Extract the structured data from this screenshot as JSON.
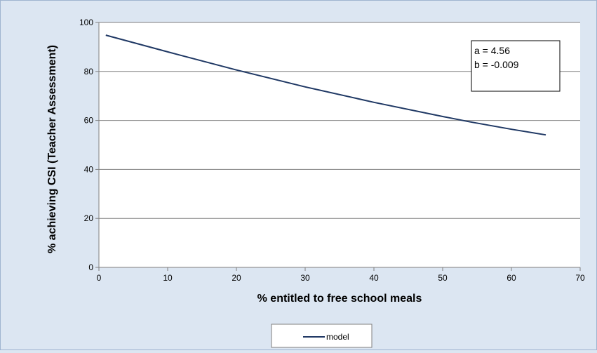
{
  "chart_data": {
    "type": "line",
    "title": "",
    "xlabel": "% entitled to free school meals",
    "ylabel": "% achieving CSI (Teacher Assessment)",
    "xlim": [
      0,
      70
    ],
    "ylim": [
      0,
      100
    ],
    "x_ticks": [
      "0",
      "10",
      "20",
      "30",
      "40",
      "50",
      "60",
      "70"
    ],
    "y_ticks": [
      "0",
      "20",
      "40",
      "60",
      "80",
      "100"
    ],
    "grid": "horizontal",
    "legend_position": "bottom",
    "series": [
      {
        "name": "model",
        "color": "#1f3864",
        "x": [
          1,
          10,
          20,
          30,
          40,
          50,
          54,
          60,
          65
        ],
        "y": [
          94.8,
          88.0,
          80.6,
          73.7,
          67.4,
          61.6,
          59.4,
          56.4,
          54.1
        ]
      }
    ],
    "annotation": {
      "lines": [
        "a = 4.56",
        "b = -0.009"
      ]
    }
  }
}
